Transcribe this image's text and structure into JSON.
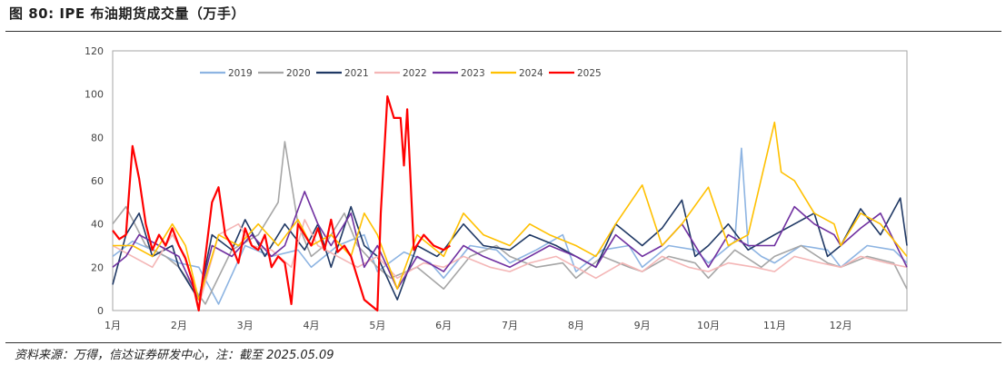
{
  "figure": {
    "title": "图 80:  IPE 布油期货成交量（万手）",
    "source": "资料来源：万得，信达证券研发中心，注：截至 2025.05.09"
  },
  "chart_data": {
    "type": "line",
    "title": "IPE 布油期货成交量（万手）",
    "unit": "万手",
    "xlabel": "",
    "ylabel": "",
    "ylim": [
      0,
      120
    ],
    "yticks": [
      0,
      20,
      40,
      60,
      80,
      100,
      120
    ],
    "month_labels": [
      "1月",
      "2月",
      "3月",
      "4月",
      "5月",
      "6月",
      "7月",
      "8月",
      "9月",
      "10月",
      "11月",
      "12月"
    ],
    "x_unit": "month index (0 = start of 1月)",
    "xlim": [
      0,
      12
    ],
    "legend_position": "top-left",
    "series": [
      {
        "name": "2019",
        "color": "#8db4e2",
        "values": [
          [
            0,
            25
          ],
          [
            0.3,
            32
          ],
          [
            0.6,
            28
          ],
          [
            1,
            22
          ],
          [
            1.3,
            20
          ],
          [
            1.6,
            3
          ],
          [
            2,
            30
          ],
          [
            2.4,
            25
          ],
          [
            2.8,
            28
          ],
          [
            3,
            20
          ],
          [
            3.4,
            30
          ],
          [
            3.8,
            35
          ],
          [
            4,
            18
          ],
          [
            4.4,
            27
          ],
          [
            4.8,
            22
          ],
          [
            5,
            15
          ],
          [
            5.4,
            30
          ],
          [
            5.8,
            28
          ],
          [
            6,
            22
          ],
          [
            6.4,
            28
          ],
          [
            6.8,
            35
          ],
          [
            7,
            18
          ],
          [
            7.4,
            28
          ],
          [
            7.8,
            30
          ],
          [
            8,
            20
          ],
          [
            8.4,
            30
          ],
          [
            8.8,
            28
          ],
          [
            9,
            22
          ],
          [
            9.4,
            32
          ],
          [
            9.5,
            75
          ],
          [
            9.6,
            30
          ],
          [
            9.8,
            25
          ],
          [
            10,
            22
          ],
          [
            10.4,
            30
          ],
          [
            10.8,
            28
          ],
          [
            11,
            20
          ],
          [
            11.4,
            30
          ],
          [
            11.8,
            28
          ],
          [
            12,
            22
          ]
        ]
      },
      {
        "name": "2020",
        "color": "#a6a6a6",
        "values": [
          [
            0,
            40
          ],
          [
            0.2,
            48
          ],
          [
            0.5,
            30
          ],
          [
            0.8,
            25
          ],
          [
            1,
            20
          ],
          [
            1.4,
            3
          ],
          [
            1.8,
            28
          ],
          [
            2.2,
            35
          ],
          [
            2.5,
            50
          ],
          [
            2.6,
            78
          ],
          [
            2.8,
            40
          ],
          [
            3,
            25
          ],
          [
            3.2,
            30
          ],
          [
            3.5,
            45
          ],
          [
            3.7,
            30
          ],
          [
            4,
            20
          ],
          [
            4.2,
            15
          ],
          [
            4.6,
            20
          ],
          [
            5,
            10
          ],
          [
            5.4,
            25
          ],
          [
            5.8,
            30
          ],
          [
            6,
            25
          ],
          [
            6.4,
            20
          ],
          [
            6.8,
            22
          ],
          [
            7,
            15
          ],
          [
            7.4,
            25
          ],
          [
            7.8,
            20
          ],
          [
            8,
            18
          ],
          [
            8.4,
            25
          ],
          [
            8.8,
            22
          ],
          [
            9,
            15
          ],
          [
            9.4,
            28
          ],
          [
            9.8,
            20
          ],
          [
            10,
            25
          ],
          [
            10.4,
            30
          ],
          [
            10.8,
            22
          ],
          [
            11,
            20
          ],
          [
            11.4,
            25
          ],
          [
            11.8,
            22
          ],
          [
            12,
            10
          ]
        ]
      },
      {
        "name": "2021",
        "color": "#1f3864",
        "values": [
          [
            0,
            12
          ],
          [
            0.2,
            35
          ],
          [
            0.4,
            45
          ],
          [
            0.6,
            25
          ],
          [
            0.9,
            30
          ],
          [
            1,
            20
          ],
          [
            1.3,
            5
          ],
          [
            1.5,
            35
          ],
          [
            1.8,
            28
          ],
          [
            2,
            42
          ],
          [
            2.3,
            25
          ],
          [
            2.6,
            40
          ],
          [
            2.9,
            28
          ],
          [
            3.1,
            40
          ],
          [
            3.3,
            20
          ],
          [
            3.6,
            48
          ],
          [
            3.8,
            30
          ],
          [
            4,
            25
          ],
          [
            4.3,
            5
          ],
          [
            4.6,
            30
          ],
          [
            4.9,
            25
          ],
          [
            5,
            28
          ],
          [
            5.3,
            40
          ],
          [
            5.6,
            30
          ],
          [
            6,
            28
          ],
          [
            6.3,
            35
          ],
          [
            6.7,
            30
          ],
          [
            7,
            25
          ],
          [
            7.3,
            20
          ],
          [
            7.6,
            40
          ],
          [
            8,
            30
          ],
          [
            8.3,
            38
          ],
          [
            8.6,
            51
          ],
          [
            8.8,
            25
          ],
          [
            9,
            30
          ],
          [
            9.3,
            40
          ],
          [
            9.6,
            28
          ],
          [
            10,
            35
          ],
          [
            10.3,
            40
          ],
          [
            10.6,
            45
          ],
          [
            10.8,
            25
          ],
          [
            11,
            30
          ],
          [
            11.3,
            47
          ],
          [
            11.6,
            35
          ],
          [
            11.9,
            52
          ],
          [
            12,
            30
          ]
        ]
      },
      {
        "name": "2022",
        "color": "#f4b6b6",
        "values": [
          [
            0,
            30
          ],
          [
            0.3,
            25
          ],
          [
            0.6,
            20
          ],
          [
            0.9,
            35
          ],
          [
            1.1,
            25
          ],
          [
            1.3,
            2
          ],
          [
            1.6,
            35
          ],
          [
            1.9,
            40
          ],
          [
            2.1,
            30
          ],
          [
            2.4,
            28
          ],
          [
            2.7,
            20
          ],
          [
            2.9,
            42
          ],
          [
            3.1,
            30
          ],
          [
            3.4,
            25
          ],
          [
            3.7,
            20
          ],
          [
            4,
            25
          ],
          [
            4.3,
            15
          ],
          [
            4.7,
            22
          ],
          [
            5,
            20
          ],
          [
            5.3,
            25
          ],
          [
            5.7,
            20
          ],
          [
            6,
            18
          ],
          [
            6.3,
            22
          ],
          [
            6.7,
            25
          ],
          [
            7,
            20
          ],
          [
            7.3,
            15
          ],
          [
            7.7,
            22
          ],
          [
            8,
            18
          ],
          [
            8.3,
            25
          ],
          [
            8.7,
            20
          ],
          [
            9,
            18
          ],
          [
            9.3,
            22
          ],
          [
            9.7,
            20
          ],
          [
            10,
            18
          ],
          [
            10.3,
            25
          ],
          [
            10.7,
            22
          ],
          [
            11,
            20
          ],
          [
            11.3,
            25
          ],
          [
            11.7,
            22
          ],
          [
            12,
            20
          ]
        ]
      },
      {
        "name": "2023",
        "color": "#7030a0",
        "values": [
          [
            0,
            20
          ],
          [
            0.2,
            25
          ],
          [
            0.4,
            35
          ],
          [
            0.7,
            30
          ],
          [
            1,
            25
          ],
          [
            1.3,
            5
          ],
          [
            1.5,
            30
          ],
          [
            1.8,
            25
          ],
          [
            2.1,
            35
          ],
          [
            2.4,
            25
          ],
          [
            2.6,
            30
          ],
          [
            2.9,
            55
          ],
          [
            3.1,
            40
          ],
          [
            3.3,
            30
          ],
          [
            3.6,
            45
          ],
          [
            3.8,
            20
          ],
          [
            4,
            30
          ],
          [
            4.3,
            10
          ],
          [
            4.6,
            25
          ],
          [
            5,
            18
          ],
          [
            5.3,
            30
          ],
          [
            5.6,
            25
          ],
          [
            6,
            20
          ],
          [
            6.3,
            25
          ],
          [
            6.6,
            30
          ],
          [
            7,
            25
          ],
          [
            7.3,
            20
          ],
          [
            7.6,
            35
          ],
          [
            8,
            25
          ],
          [
            8.3,
            30
          ],
          [
            8.6,
            40
          ],
          [
            9,
            20
          ],
          [
            9.3,
            35
          ],
          [
            9.6,
            30
          ],
          [
            10,
            30
          ],
          [
            10.3,
            48
          ],
          [
            10.6,
            40
          ],
          [
            10.9,
            35
          ],
          [
            11,
            30
          ],
          [
            11.3,
            38
          ],
          [
            11.6,
            45
          ],
          [
            12,
            20
          ]
        ]
      },
      {
        "name": "2024",
        "color": "#ffc000",
        "values": [
          [
            0,
            30
          ],
          [
            0.3,
            30
          ],
          [
            0.6,
            25
          ],
          [
            0.9,
            40
          ],
          [
            1.1,
            30
          ],
          [
            1.3,
            5
          ],
          [
            1.6,
            35
          ],
          [
            1.9,
            30
          ],
          [
            2.2,
            40
          ],
          [
            2.5,
            30
          ],
          [
            2.8,
            42
          ],
          [
            3,
            30
          ],
          [
            3.3,
            35
          ],
          [
            3.6,
            25
          ],
          [
            3.8,
            45
          ],
          [
            4,
            35
          ],
          [
            4.3,
            10
          ],
          [
            4.6,
            35
          ],
          [
            5,
            25
          ],
          [
            5.3,
            45
          ],
          [
            5.6,
            35
          ],
          [
            6,
            30
          ],
          [
            6.3,
            40
          ],
          [
            6.6,
            35
          ],
          [
            7,
            30
          ],
          [
            7.3,
            25
          ],
          [
            7.6,
            40
          ],
          [
            8,
            58
          ],
          [
            8.3,
            30
          ],
          [
            8.6,
            40
          ],
          [
            9,
            57
          ],
          [
            9.3,
            30
          ],
          [
            9.6,
            35
          ],
          [
            10,
            87
          ],
          [
            10.1,
            64
          ],
          [
            10.3,
            60
          ],
          [
            10.6,
            45
          ],
          [
            10.9,
            40
          ],
          [
            11,
            30
          ],
          [
            11.3,
            45
          ],
          [
            11.6,
            40
          ],
          [
            12,
            25
          ]
        ]
      },
      {
        "name": "2025",
        "color": "#ff0000",
        "values": [
          [
            0,
            37
          ],
          [
            0.1,
            33
          ],
          [
            0.2,
            35
          ],
          [
            0.3,
            76
          ],
          [
            0.4,
            61
          ],
          [
            0.5,
            40
          ],
          [
            0.6,
            28
          ],
          [
            0.7,
            35
          ],
          [
            0.8,
            30
          ],
          [
            0.9,
            38
          ],
          [
            1,
            30
          ],
          [
            1.1,
            24
          ],
          [
            1.2,
            14
          ],
          [
            1.3,
            0
          ],
          [
            1.5,
            50
          ],
          [
            1.6,
            57
          ],
          [
            1.7,
            35
          ],
          [
            1.8,
            30
          ],
          [
            1.9,
            22
          ],
          [
            2,
            38
          ],
          [
            2.1,
            30
          ],
          [
            2.2,
            28
          ],
          [
            2.3,
            35
          ],
          [
            2.4,
            20
          ],
          [
            2.5,
            25
          ],
          [
            2.6,
            22
          ],
          [
            2.7,
            3
          ],
          [
            2.8,
            40
          ],
          [
            2.9,
            35
          ],
          [
            3,
            30
          ],
          [
            3.1,
            38
          ],
          [
            3.2,
            28
          ],
          [
            3.3,
            42
          ],
          [
            3.4,
            27
          ],
          [
            3.5,
            30
          ],
          [
            3.6,
            25
          ],
          [
            3.7,
            15
          ],
          [
            3.8,
            5
          ],
          [
            4,
            0
          ],
          [
            4.05,
            45
          ],
          [
            4.15,
            99
          ],
          [
            4.25,
            89
          ],
          [
            4.35,
            89
          ],
          [
            4.4,
            67
          ],
          [
            4.45,
            93
          ],
          [
            4.55,
            28
          ],
          [
            4.7,
            35
          ],
          [
            4.85,
            30
          ],
          [
            5,
            28
          ],
          [
            5.1,
            30
          ]
        ]
      }
    ]
  }
}
